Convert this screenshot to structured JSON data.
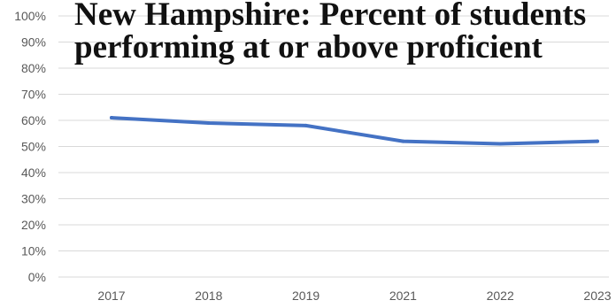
{
  "chart_data": {
    "type": "line",
    "title_lines": [
      "New Hampshire: Percent of students",
      "performing at or above  proficient"
    ],
    "xlabel": "",
    "ylabel": "",
    "categories": [
      "2017",
      "2018",
      "2019",
      "2021",
      "2022",
      "2023"
    ],
    "series": [
      {
        "values": [
          61,
          59,
          58,
          52,
          51,
          52
        ],
        "color": "#4472c4"
      }
    ],
    "ylim": [
      0,
      100
    ],
    "yticks": [
      0,
      10,
      20,
      30,
      40,
      50,
      60,
      70,
      80,
      90,
      100
    ],
    "ytick_labels": [
      "0%",
      "10%",
      "20%",
      "30%",
      "40%",
      "50%",
      "60%",
      "70%",
      "80%",
      "90%",
      "100%"
    ],
    "grid": true,
    "gridline_color": "#d9d9d9",
    "legend": "none"
  }
}
